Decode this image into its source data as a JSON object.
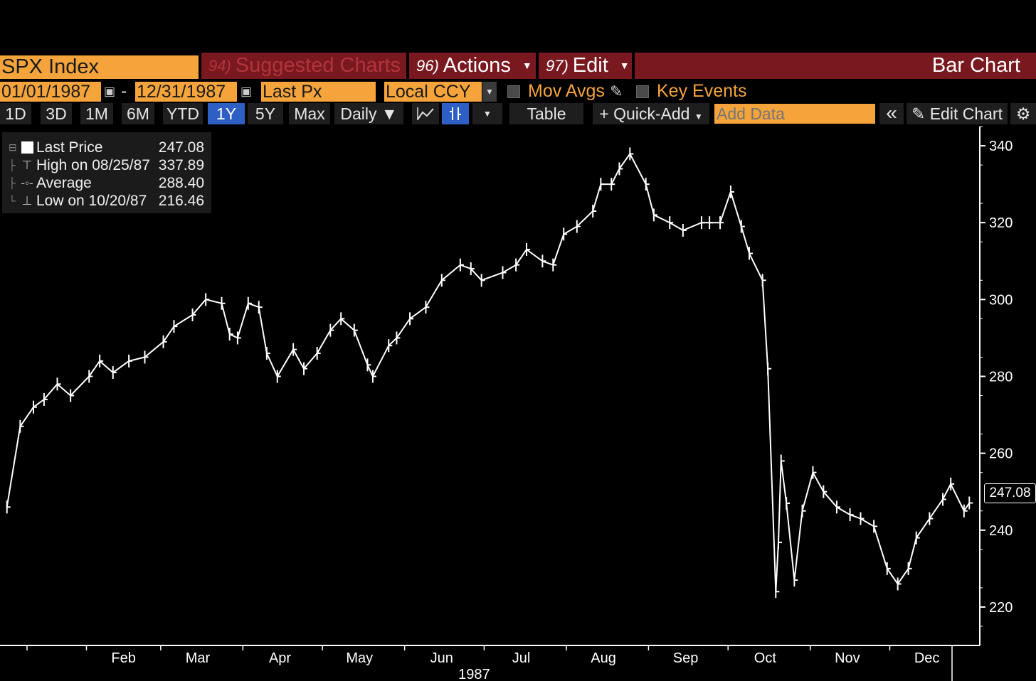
{
  "header": {
    "ticker": "SPX Index",
    "suggested_num": "94)",
    "suggested_label": "Suggested Charts",
    "actions_num": "96)",
    "actions_label": "Actions",
    "edit_num": "97)",
    "edit_label": "Edit",
    "title": "Bar Chart"
  },
  "date_range": {
    "start": "01/01/1987",
    "separator": "-",
    "end": "12/31/1987",
    "field": "Last Px",
    "currency": "Local CCY",
    "mov_avgs": "Mov Avgs",
    "key_events": "Key Events"
  },
  "toolbar": {
    "periods": [
      "1D",
      "3D",
      "1M",
      "6M",
      "YTD",
      "1Y",
      "5Y",
      "Max"
    ],
    "active_period": "1Y",
    "frequency": "Daily ▼",
    "table": "Table",
    "quick_add": "+ Quick-Add",
    "add_data_placeholder": "Add Data",
    "collapse": "«",
    "edit_chart": "Edit Chart"
  },
  "legend": [
    {
      "label": "Last Price",
      "value": "247.08"
    },
    {
      "label": "High on 08/25/87",
      "value": "337.89"
    },
    {
      "label": "Average",
      "value": "288.40"
    },
    {
      "label": "Low on 10/20/87",
      "value": "216.46"
    }
  ],
  "chart_data": {
    "type": "line",
    "year_label": "1987",
    "ylim": [
      210,
      345
    ],
    "y_ticks": [
      220,
      240,
      260,
      280,
      300,
      320,
      340
    ],
    "x_ticks": [
      "Feb",
      "Mar",
      "Apr",
      "May",
      "Jun",
      "Jul",
      "Aug",
      "Sep",
      "Oct",
      "Nov",
      "Dec"
    ],
    "last_price": "247.08",
    "series": [
      {
        "x": [
          "1987-01-02",
          "1987-01-07",
          "1987-01-12",
          "1987-01-16",
          "1987-01-21",
          "1987-01-26",
          "1987-02-02",
          "1987-02-06",
          "1987-02-11",
          "1987-02-17",
          "1987-02-23",
          "1987-03-02",
          "1987-03-06",
          "1987-03-13",
          "1987-03-18",
          "1987-03-24",
          "1987-03-27",
          "1987-03-30",
          "1987-04-03",
          "1987-04-07",
          "1987-04-10",
          "1987-04-14",
          "1987-04-20",
          "1987-04-24",
          "1987-04-29",
          "1987-05-04",
          "1987-05-08",
          "1987-05-13",
          "1987-05-18",
          "1987-05-20",
          "1987-05-26",
          "1987-05-29",
          "1987-06-03",
          "1987-06-09",
          "1987-06-15",
          "1987-06-22",
          "1987-06-26",
          "1987-06-30",
          "1987-07-08",
          "1987-07-13",
          "1987-07-17",
          "1987-07-23",
          "1987-07-27",
          "1987-07-31",
          "1987-08-05",
          "1987-08-11",
          "1987-08-14",
          "1987-08-18",
          "1987-08-21",
          "1987-08-25",
          "1987-08-31",
          "1987-09-03",
          "1987-09-09",
          "1987-09-14",
          "1987-09-21",
          "1987-09-24",
          "1987-09-28",
          "1987-10-02",
          "1987-10-06",
          "1987-10-09",
          "1987-10-14",
          "1987-10-16",
          "1987-10-19",
          "1987-10-20",
          "1987-10-21",
          "1987-10-23",
          "1987-10-26",
          "1987-10-29",
          "1987-11-02",
          "1987-11-06",
          "1987-11-11",
          "1987-11-16",
          "1987-11-20",
          "1987-11-25",
          "1987-11-30",
          "1987-12-04",
          "1987-12-08",
          "1987-12-11",
          "1987-12-16",
          "1987-12-21",
          "1987-12-24",
          "1987-12-29",
          "1987-12-31"
        ],
        "close": [
          246,
          267,
          272,
          274,
          278,
          275,
          280,
          284,
          281,
          284,
          285,
          289,
          293,
          296,
          300,
          299,
          291,
          290,
          299,
          298,
          286,
          280,
          287,
          282,
          286,
          292,
          295,
          292,
          283,
          280,
          288,
          290,
          295,
          298,
          305,
          309,
          308,
          305,
          307,
          309,
          313,
          310,
          309,
          317,
          319,
          323,
          330,
          330,
          334,
          337.89,
          330,
          322,
          320,
          318,
          320,
          320,
          320,
          328,
          319,
          312,
          305,
          282,
          224,
          236.8,
          258,
          247,
          227,
          245,
          255,
          250,
          246,
          244,
          243,
          241,
          230,
          226,
          230,
          238,
          243,
          248,
          252,
          245,
          247.08
        ]
      }
    ]
  }
}
